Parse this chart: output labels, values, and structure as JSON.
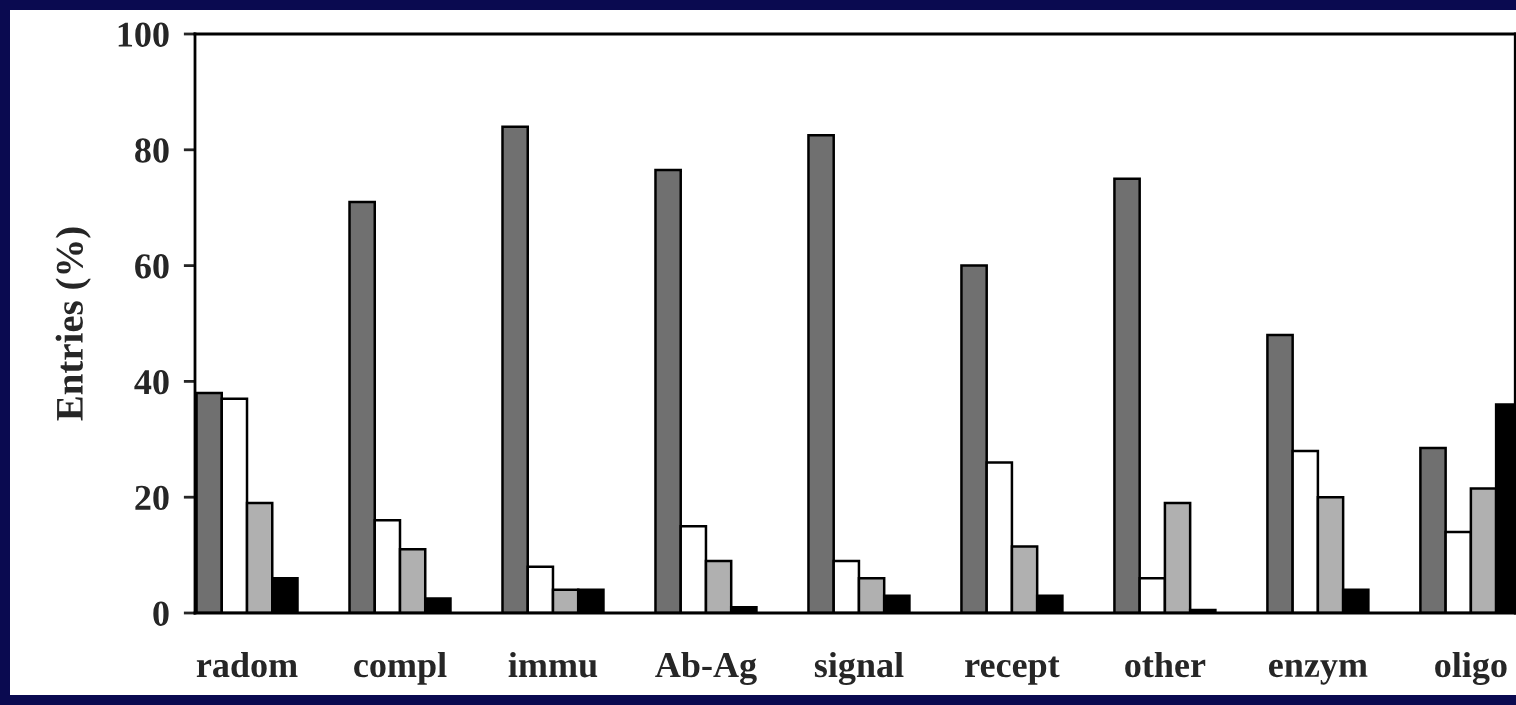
{
  "chart_data": {
    "type": "bar",
    "ylabel": "Entries (%)",
    "categories": [
      "radom",
      "compl",
      "immu",
      "Ab-Ag",
      "signal",
      "recept",
      "other",
      "enzym",
      "oligo"
    ],
    "series": [
      {
        "color": "#707070",
        "values": [
          38,
          71,
          84,
          76.5,
          82.5,
          60,
          75,
          48,
          28.5
        ]
      },
      {
        "color": "#ffffff",
        "values": [
          37,
          16,
          8,
          15,
          9,
          26,
          6,
          28,
          14
        ]
      },
      {
        "color": "#b0b0b0",
        "values": [
          19,
          11,
          4,
          9,
          6,
          11.5,
          19,
          20,
          21.5
        ]
      },
      {
        "color": "#000000",
        "values": [
          6,
          2.5,
          4,
          1,
          3,
          3,
          0.5,
          4,
          36
        ]
      }
    ],
    "ylim": [
      0,
      100
    ],
    "yticks": [
      0,
      20,
      40,
      60,
      80,
      100
    ]
  }
}
